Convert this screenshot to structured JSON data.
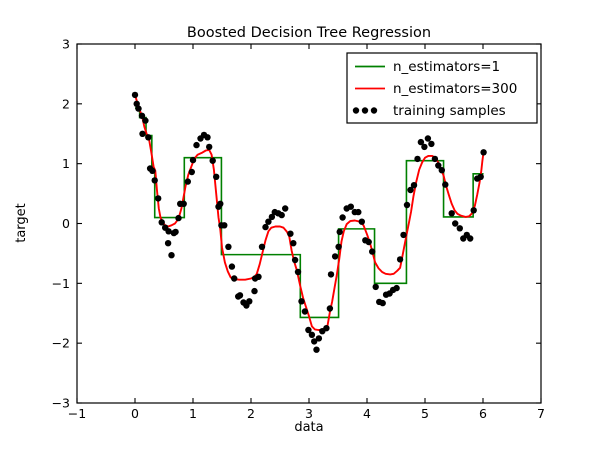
{
  "chart_data": {
    "type": "line+scatter",
    "title": "Boosted Decision Tree Regression",
    "xlabel": "data",
    "ylabel": "target",
    "xlim": [
      -1,
      7
    ],
    "ylim": [
      -3,
      3
    ],
    "xticks": [
      -1,
      0,
      1,
      2,
      3,
      4,
      5,
      6,
      7
    ],
    "yticks": [
      -3,
      -2,
      -1,
      0,
      1,
      2,
      3
    ],
    "grid": false,
    "legend_position": "upper right",
    "background_color": "#ffffff",
    "axis_color": "#000000",
    "series": [
      {
        "name": "n_estimators=1",
        "type": "step",
        "color": "#008000",
        "segments": [
          [
            0.0,
            0.08,
            1.93
          ],
          [
            0.08,
            0.19,
            1.77
          ],
          [
            0.19,
            0.29,
            1.47
          ],
          [
            0.29,
            0.34,
            0.87
          ],
          [
            0.34,
            0.85,
            0.1
          ],
          [
            0.85,
            1.49,
            1.1
          ],
          [
            1.49,
            2.85,
            -0.52
          ],
          [
            2.85,
            3.51,
            -1.57
          ],
          [
            3.51,
            4.13,
            -0.09
          ],
          [
            4.13,
            4.68,
            -1.0
          ],
          [
            4.68,
            5.32,
            1.05
          ],
          [
            5.32,
            5.83,
            0.11
          ],
          [
            5.83,
            6.01,
            0.83
          ]
        ]
      },
      {
        "name": "n_estimators=300",
        "type": "line",
        "color": "#ff0000",
        "points": [
          [
            0.0,
            2.15
          ],
          [
            0.04,
            2.02
          ],
          [
            0.08,
            1.9
          ],
          [
            0.12,
            1.8
          ],
          [
            0.16,
            1.62
          ],
          [
            0.2,
            1.5
          ],
          [
            0.24,
            1.42
          ],
          [
            0.28,
            1.2
          ],
          [
            0.32,
            0.95
          ],
          [
            0.35,
            0.88
          ],
          [
            0.38,
            0.55
          ],
          [
            0.41,
            0.25
          ],
          [
            0.44,
            0.1
          ],
          [
            0.48,
            0.02
          ],
          [
            0.52,
            -0.03
          ],
          [
            0.57,
            -0.05
          ],
          [
            0.63,
            -0.03
          ],
          [
            0.69,
            0.0
          ],
          [
            0.75,
            0.08
          ],
          [
            0.8,
            0.25
          ],
          [
            0.83,
            0.4
          ],
          [
            0.87,
            0.62
          ],
          [
            0.92,
            0.82
          ],
          [
            0.97,
            0.95
          ],
          [
            1.02,
            1.08
          ],
          [
            1.08,
            1.15
          ],
          [
            1.15,
            1.18
          ],
          [
            1.22,
            1.22
          ],
          [
            1.28,
            1.23
          ],
          [
            1.32,
            1.15
          ],
          [
            1.36,
            0.9
          ],
          [
            1.4,
            0.5
          ],
          [
            1.44,
            0.1
          ],
          [
            1.47,
            -0.1
          ],
          [
            1.5,
            -0.4
          ],
          [
            1.55,
            -0.65
          ],
          [
            1.6,
            -0.8
          ],
          [
            1.65,
            -0.9
          ],
          [
            1.7,
            -0.93
          ],
          [
            1.8,
            -0.94
          ],
          [
            1.9,
            -0.94
          ],
          [
            2.0,
            -0.92
          ],
          [
            2.06,
            -0.89
          ],
          [
            2.1,
            -0.84
          ],
          [
            2.15,
            -0.68
          ],
          [
            2.2,
            -0.48
          ],
          [
            2.25,
            -0.28
          ],
          [
            2.3,
            -0.13
          ],
          [
            2.35,
            -0.07
          ],
          [
            2.42,
            -0.05
          ],
          [
            2.5,
            -0.05
          ],
          [
            2.56,
            -0.07
          ],
          [
            2.62,
            -0.14
          ],
          [
            2.66,
            -0.22
          ],
          [
            2.7,
            -0.45
          ],
          [
            2.74,
            -0.62
          ],
          [
            2.79,
            -0.78
          ],
          [
            2.85,
            -1.05
          ],
          [
            2.9,
            -1.25
          ],
          [
            2.95,
            -1.4
          ],
          [
            3.0,
            -1.55
          ],
          [
            3.05,
            -1.72
          ],
          [
            3.1,
            -1.77
          ],
          [
            3.16,
            -1.78
          ],
          [
            3.22,
            -1.78
          ],
          [
            3.27,
            -1.76
          ],
          [
            3.32,
            -1.7
          ],
          [
            3.36,
            -1.48
          ],
          [
            3.4,
            -1.3
          ],
          [
            3.44,
            -1.08
          ],
          [
            3.48,
            -0.86
          ],
          [
            3.52,
            -0.6
          ],
          [
            3.56,
            -0.3
          ],
          [
            3.6,
            -0.13
          ],
          [
            3.65,
            -0.01
          ],
          [
            3.71,
            0.04
          ],
          [
            3.79,
            0.05
          ],
          [
            3.88,
            0.03
          ],
          [
            3.94,
            -0.03
          ],
          [
            4.0,
            -0.18
          ],
          [
            4.05,
            -0.32
          ],
          [
            4.1,
            -0.5
          ],
          [
            4.14,
            -0.65
          ],
          [
            4.2,
            -0.75
          ],
          [
            4.26,
            -0.81
          ],
          [
            4.32,
            -0.84
          ],
          [
            4.4,
            -0.85
          ],
          [
            4.46,
            -0.84
          ],
          [
            4.52,
            -0.79
          ],
          [
            4.57,
            -0.74
          ],
          [
            4.6,
            -0.6
          ],
          [
            4.64,
            -0.4
          ],
          [
            4.68,
            -0.2
          ],
          [
            4.72,
            0.0
          ],
          [
            4.76,
            0.2
          ],
          [
            4.8,
            0.45
          ],
          [
            4.85,
            0.7
          ],
          [
            4.9,
            0.9
          ],
          [
            4.95,
            1.02
          ],
          [
            5.0,
            1.1
          ],
          [
            5.06,
            1.13
          ],
          [
            5.12,
            1.13
          ],
          [
            5.18,
            1.1
          ],
          [
            5.23,
            1.02
          ],
          [
            5.28,
            0.9
          ],
          [
            5.32,
            0.8
          ],
          [
            5.36,
            0.64
          ],
          [
            5.41,
            0.48
          ],
          [
            5.46,
            0.33
          ],
          [
            5.51,
            0.22
          ],
          [
            5.56,
            0.16
          ],
          [
            5.62,
            0.13
          ],
          [
            5.7,
            0.11
          ],
          [
            5.76,
            0.12
          ],
          [
            5.81,
            0.17
          ],
          [
            5.86,
            0.3
          ],
          [
            5.9,
            0.48
          ],
          [
            5.94,
            0.68
          ],
          [
            5.97,
            0.88
          ],
          [
            5.99,
            1.05
          ],
          [
            6.01,
            1.2
          ]
        ]
      },
      {
        "name": "training samples",
        "type": "scatter",
        "color": "#000000",
        "points": [
          [
            0.0,
            2.15
          ],
          [
            0.03,
            2.0
          ],
          [
            0.06,
            1.92
          ],
          [
            0.12,
            1.8
          ],
          [
            0.13,
            1.5
          ],
          [
            0.18,
            1.72
          ],
          [
            0.23,
            1.44
          ],
          [
            0.26,
            0.92
          ],
          [
            0.3,
            0.88
          ],
          [
            0.34,
            0.72
          ],
          [
            0.4,
            0.42
          ],
          [
            0.46,
            0.02
          ],
          [
            0.52,
            -0.07
          ],
          [
            0.57,
            -0.33
          ],
          [
            0.58,
            -0.13
          ],
          [
            0.63,
            -0.53
          ],
          [
            0.67,
            -0.16
          ],
          [
            0.7,
            -0.14
          ],
          [
            0.75,
            0.09
          ],
          [
            0.78,
            0.33
          ],
          [
            0.84,
            0.33
          ],
          [
            0.91,
            0.7
          ],
          [
            0.98,
            0.86
          ],
          [
            1.0,
            1.06
          ],
          [
            1.06,
            1.31
          ],
          [
            1.13,
            1.42
          ],
          [
            1.19,
            1.48
          ],
          [
            1.25,
            1.44
          ],
          [
            1.28,
            1.28
          ],
          [
            1.34,
            1.05
          ],
          [
            1.4,
            0.78
          ],
          [
            1.44,
            0.28
          ],
          [
            1.47,
            0.33
          ],
          [
            1.49,
            -0.03
          ],
          [
            1.54,
            -0.03
          ],
          [
            1.61,
            -0.39
          ],
          [
            1.67,
            -0.72
          ],
          [
            1.71,
            -0.92
          ],
          [
            1.78,
            -1.22
          ],
          [
            1.81,
            -1.2
          ],
          [
            1.87,
            -1.32
          ],
          [
            1.92,
            -1.37
          ],
          [
            1.97,
            -1.3
          ],
          [
            2.06,
            -1.13
          ],
          [
            2.07,
            -0.92
          ],
          [
            2.13,
            -0.89
          ],
          [
            2.19,
            -0.39
          ],
          [
            2.25,
            -0.06
          ],
          [
            2.3,
            0.03
          ],
          [
            2.36,
            0.11
          ],
          [
            2.41,
            0.19
          ],
          [
            2.47,
            0.17
          ],
          [
            2.53,
            0.14
          ],
          [
            2.59,
            0.25
          ],
          [
            2.68,
            -0.17
          ],
          [
            2.73,
            -0.33
          ],
          [
            2.76,
            -0.61
          ],
          [
            2.81,
            -0.81
          ],
          [
            2.87,
            -1.3
          ],
          [
            2.93,
            -1.47
          ],
          [
            2.99,
            -1.78
          ],
          [
            3.05,
            -1.86
          ],
          [
            3.09,
            -1.97
          ],
          [
            3.13,
            -2.11
          ],
          [
            3.17,
            -1.92
          ],
          [
            3.23,
            -1.8
          ],
          [
            3.3,
            -1.75
          ],
          [
            3.36,
            -1.42
          ],
          [
            3.38,
            -0.85
          ],
          [
            3.45,
            -0.55
          ],
          [
            3.51,
            -0.39
          ],
          [
            3.53,
            -0.14
          ],
          [
            3.58,
            0.1
          ],
          [
            3.65,
            0.25
          ],
          [
            3.72,
            0.28
          ],
          [
            3.79,
            0.19
          ],
          [
            3.85,
            0.19
          ],
          [
            3.91,
            0.03
          ],
          [
            3.97,
            -0.28
          ],
          [
            4.03,
            -0.31
          ],
          [
            4.09,
            -0.47
          ],
          [
            4.15,
            -1.06
          ],
          [
            4.21,
            -1.31
          ],
          [
            4.27,
            -1.33
          ],
          [
            4.33,
            -1.19
          ],
          [
            4.39,
            -1.17
          ],
          [
            4.45,
            -1.11
          ],
          [
            4.51,
            -1.08
          ],
          [
            4.57,
            -0.6
          ],
          [
            4.63,
            -0.19
          ],
          [
            4.69,
            0.31
          ],
          [
            4.75,
            0.56
          ],
          [
            4.81,
            0.64
          ],
          [
            4.87,
            1.08
          ],
          [
            4.93,
            1.36
          ],
          [
            4.99,
            1.28
          ],
          [
            5.05,
            1.42
          ],
          [
            5.11,
            1.33
          ],
          [
            5.17,
            1.08
          ],
          [
            5.23,
            0.97
          ],
          [
            5.29,
            0.89
          ],
          [
            5.35,
            0.65
          ],
          [
            5.46,
            0.17
          ],
          [
            5.52,
            0.0
          ],
          [
            5.6,
            -0.08
          ],
          [
            5.66,
            -0.25
          ],
          [
            5.72,
            -0.19
          ],
          [
            5.78,
            -0.25
          ],
          [
            5.84,
            0.22
          ],
          [
            5.9,
            0.75
          ],
          [
            5.96,
            0.78
          ],
          [
            6.01,
            1.19
          ]
        ]
      }
    ]
  }
}
